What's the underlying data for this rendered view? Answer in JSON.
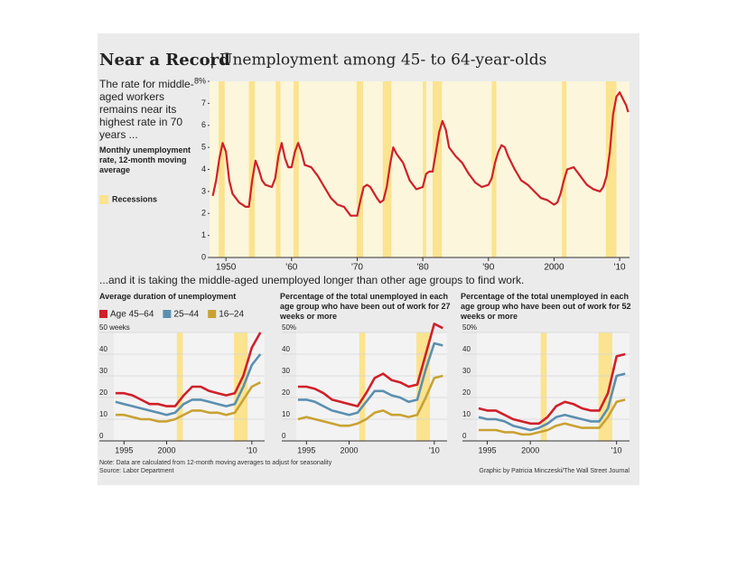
{
  "header": {
    "title": "Near a Record",
    "subtitle": "| Unemployment among 45- to 64-year-olds"
  },
  "section_heading": "...and it is taking the middle-aged unemployed longer than other age groups to find work.",
  "footer": {
    "note": "Note: Data are calculated from 12-month moving averages to adjust for seasonality",
    "source": "Source: Labor Department",
    "credit": "Graphic by Patricia Minczeski/The Wall Street Journal"
  },
  "chart_data": [
    {
      "type": "line",
      "description": "The rate for middle-aged workers remains near its highest rate in 70 years ...",
      "subtitle": "Monthly unemployment rate, 12-month moving average",
      "recessions": {
        "name": "Recessions",
        "color": "#fbe38f",
        "ranges": [
          [
            1948.9,
            1949.8
          ],
          [
            1953.5,
            1954.4
          ],
          [
            1957.6,
            1958.3
          ],
          [
            1960.3,
            1961.1
          ],
          [
            1969.9,
            1970.9
          ],
          [
            1973.9,
            1975.2
          ],
          [
            1980.0,
            1980.5
          ],
          [
            1981.5,
            1982.9
          ],
          [
            1990.5,
            1991.2
          ],
          [
            2001.2,
            2001.9
          ],
          [
            2007.9,
            2009.5
          ]
        ]
      },
      "x": [
        1948,
        1948.5,
        1949,
        1949.5,
        1950,
        1950.5,
        1951,
        1952,
        1953,
        1953.5,
        1954,
        1954.5,
        1955,
        1955.5,
        1956,
        1957,
        1957.5,
        1958,
        1958.5,
        1959,
        1959.5,
        1960,
        1960.5,
        1961,
        1961.5,
        1962,
        1963,
        1964,
        1965,
        1966,
        1967,
        1968,
        1969,
        1970,
        1970.5,
        1971,
        1971.5,
        1972,
        1973,
        1973.5,
        1974,
        1974.5,
        1975,
        1975.5,
        1976,
        1977,
        1978,
        1979,
        1980,
        1980.5,
        1981,
        1981.5,
        1982,
        1982.5,
        1983,
        1983.5,
        1984,
        1985,
        1986,
        1987,
        1988,
        1989,
        1990,
        1990.5,
        1991,
        1991.5,
        1992,
        1992.5,
        1993,
        1994,
        1995,
        1996,
        1997,
        1998,
        1999,
        2000,
        2000.5,
        2001,
        2001.5,
        2002,
        2003,
        2004,
        2005,
        2006,
        2007,
        2007.5,
        2008,
        2008.5,
        2009,
        2009.5,
        2010,
        2010.5,
        2011,
        2011.3
      ],
      "values": [
        2.8,
        3.5,
        4.5,
        5.2,
        4.8,
        3.5,
        2.9,
        2.5,
        2.3,
        2.3,
        3.5,
        4.4,
        4.0,
        3.5,
        3.3,
        3.2,
        3.6,
        4.6,
        5.2,
        4.5,
        4.1,
        4.1,
        4.8,
        5.2,
        4.8,
        4.2,
        4.1,
        3.7,
        3.2,
        2.7,
        2.4,
        2.3,
        1.9,
        1.9,
        2.6,
        3.2,
        3.3,
        3.2,
        2.7,
        2.5,
        2.6,
        3.2,
        4.2,
        5.0,
        4.7,
        4.3,
        3.5,
        3.1,
        3.2,
        3.8,
        3.9,
        3.9,
        4.8,
        5.7,
        6.2,
        5.8,
        5.0,
        4.6,
        4.3,
        3.8,
        3.4,
        3.2,
        3.3,
        3.6,
        4.3,
        4.8,
        5.1,
        5.0,
        4.6,
        4.0,
        3.5,
        3.3,
        3.0,
        2.7,
        2.6,
        2.4,
        2.5,
        2.9,
        3.5,
        4.0,
        4.1,
        3.7,
        3.3,
        3.1,
        3.0,
        3.2,
        3.7,
        4.8,
        6.5,
        7.3,
        7.5,
        7.2,
        6.9,
        6.6
      ],
      "color": "#d0202a",
      "xlim": [
        1947.5,
        2011.5
      ],
      "ylim": [
        0,
        8
      ],
      "xticks": [
        1950,
        {
          "value": 1960,
          "label": "'60"
        },
        {
          "value": 1970,
          "label": "'70"
        },
        {
          "value": 1980,
          "label": "'80"
        },
        {
          "value": 1990,
          "label": "'90"
        },
        2000,
        {
          "value": 2010,
          "label": "'10"
        }
      ],
      "yticks": [
        0,
        1,
        2,
        3,
        4,
        5,
        6,
        7,
        {
          "value": 8,
          "label": "8%"
        }
      ]
    },
    {
      "type": "line",
      "title": "Average duration of unemployment",
      "recessions": {
        "color": "#fbe38f",
        "ranges": [
          [
            2001.2,
            2001.9
          ],
          [
            2007.9,
            2009.5
          ]
        ]
      },
      "x": [
        1994,
        1995,
        1996,
        1997,
        1998,
        1999,
        2000,
        2001,
        2002,
        2003,
        2004,
        2005,
        2006,
        2007,
        2008,
        2009,
        2010,
        2011
      ],
      "series": [
        {
          "name": "Age 45–64",
          "color": "#d0202a",
          "values": [
            22,
            22,
            21,
            19,
            17,
            17,
            16,
            16,
            21,
            25,
            25,
            23,
            22,
            21,
            22,
            30,
            43,
            50
          ]
        },
        {
          "name": "25–44",
          "color": "#5b8fb0",
          "values": [
            18,
            17,
            16,
            15,
            14,
            13,
            12,
            13,
            17,
            19,
            19,
            18,
            17,
            16,
            17,
            25,
            35,
            40
          ]
        },
        {
          "name": "16–24",
          "color": "#c9a233",
          "values": [
            12,
            12,
            11,
            10,
            10,
            9,
            9,
            10,
            12,
            14,
            14,
            13,
            13,
            12,
            13,
            19,
            25,
            27
          ]
        }
      ],
      "xlim": [
        1993.8,
        2011.5
      ],
      "ylim": [
        0,
        50
      ],
      "xticks": [
        1995,
        2000,
        {
          "value": 2010,
          "label": "'10"
        }
      ],
      "yticks": [
        0,
        10,
        20,
        30,
        40,
        {
          "value": 50,
          "label": "50 weeks"
        }
      ]
    },
    {
      "type": "line",
      "title": "Percentage of the total unemployed in each age group who have been out of work for 27 weeks or more",
      "recessions": {
        "color": "#fbe38f",
        "ranges": [
          [
            2001.2,
            2001.9
          ],
          [
            2007.9,
            2009.5
          ]
        ]
      },
      "x": [
        1994,
        1995,
        1996,
        1997,
        1998,
        1999,
        2000,
        2001,
        2002,
        2003,
        2004,
        2005,
        2006,
        2007,
        2008,
        2009,
        2010,
        2011
      ],
      "series": [
        {
          "color": "#d0202a",
          "values": [
            25,
            25,
            24,
            22,
            19,
            18,
            17,
            16,
            22,
            29,
            31,
            28,
            27,
            25,
            26,
            40,
            54,
            52
          ]
        },
        {
          "color": "#5b8fb0",
          "values": [
            19,
            19,
            18,
            16,
            14,
            13,
            12,
            13,
            18,
            23,
            23,
            21,
            20,
            18,
            19,
            33,
            45,
            44
          ]
        },
        {
          "color": "#c9a233",
          "values": [
            10,
            11,
            10,
            9,
            8,
            7,
            7,
            8,
            10,
            13,
            14,
            12,
            12,
            11,
            12,
            20,
            29,
            30
          ]
        }
      ],
      "xlim": [
        1993.8,
        2011.5
      ],
      "ylim": [
        0,
        50
      ],
      "xticks": [
        1995,
        2000,
        {
          "value": 2010,
          "label": "'10"
        }
      ],
      "yticks": [
        0,
        10,
        20,
        30,
        40,
        {
          "value": 50,
          "label": "50%"
        }
      ]
    },
    {
      "type": "line",
      "title": "Percentage of the total unemployed in each age group who have been out of work for 52 weeks or more",
      "recessions": {
        "color": "#fbe38f",
        "ranges": [
          [
            2001.2,
            2001.9
          ],
          [
            2007.9,
            2009.5
          ]
        ]
      },
      "x": [
        1994,
        1995,
        1996,
        1997,
        1998,
        1999,
        2000,
        2001,
        2002,
        2003,
        2004,
        2005,
        2006,
        2007,
        2008,
        2009,
        2010,
        2011
      ],
      "series": [
        {
          "color": "#d0202a",
          "values": [
            15,
            14,
            14,
            12,
            10,
            9,
            8,
            8,
            11,
            16,
            18,
            17,
            15,
            14,
            14,
            22,
            39,
            40
          ]
        },
        {
          "color": "#5b8fb0",
          "values": [
            11,
            10,
            10,
            9,
            7,
            6,
            5,
            6,
            8,
            11,
            12,
            11,
            10,
            9,
            9,
            15,
            30,
            31
          ]
        },
        {
          "color": "#c9a233",
          "values": [
            5,
            5,
            5,
            4,
            4,
            3,
            3,
            4,
            5,
            7,
            8,
            7,
            6,
            6,
            6,
            11,
            18,
            19
          ]
        }
      ],
      "xlim": [
        1993.8,
        2011.5
      ],
      "ylim": [
        0,
        50
      ],
      "xticks": [
        1995,
        2000,
        {
          "value": 2010,
          "label": "'10"
        }
      ],
      "yticks": [
        0,
        10,
        20,
        30,
        40,
        {
          "value": 50,
          "label": "50%"
        }
      ]
    }
  ]
}
